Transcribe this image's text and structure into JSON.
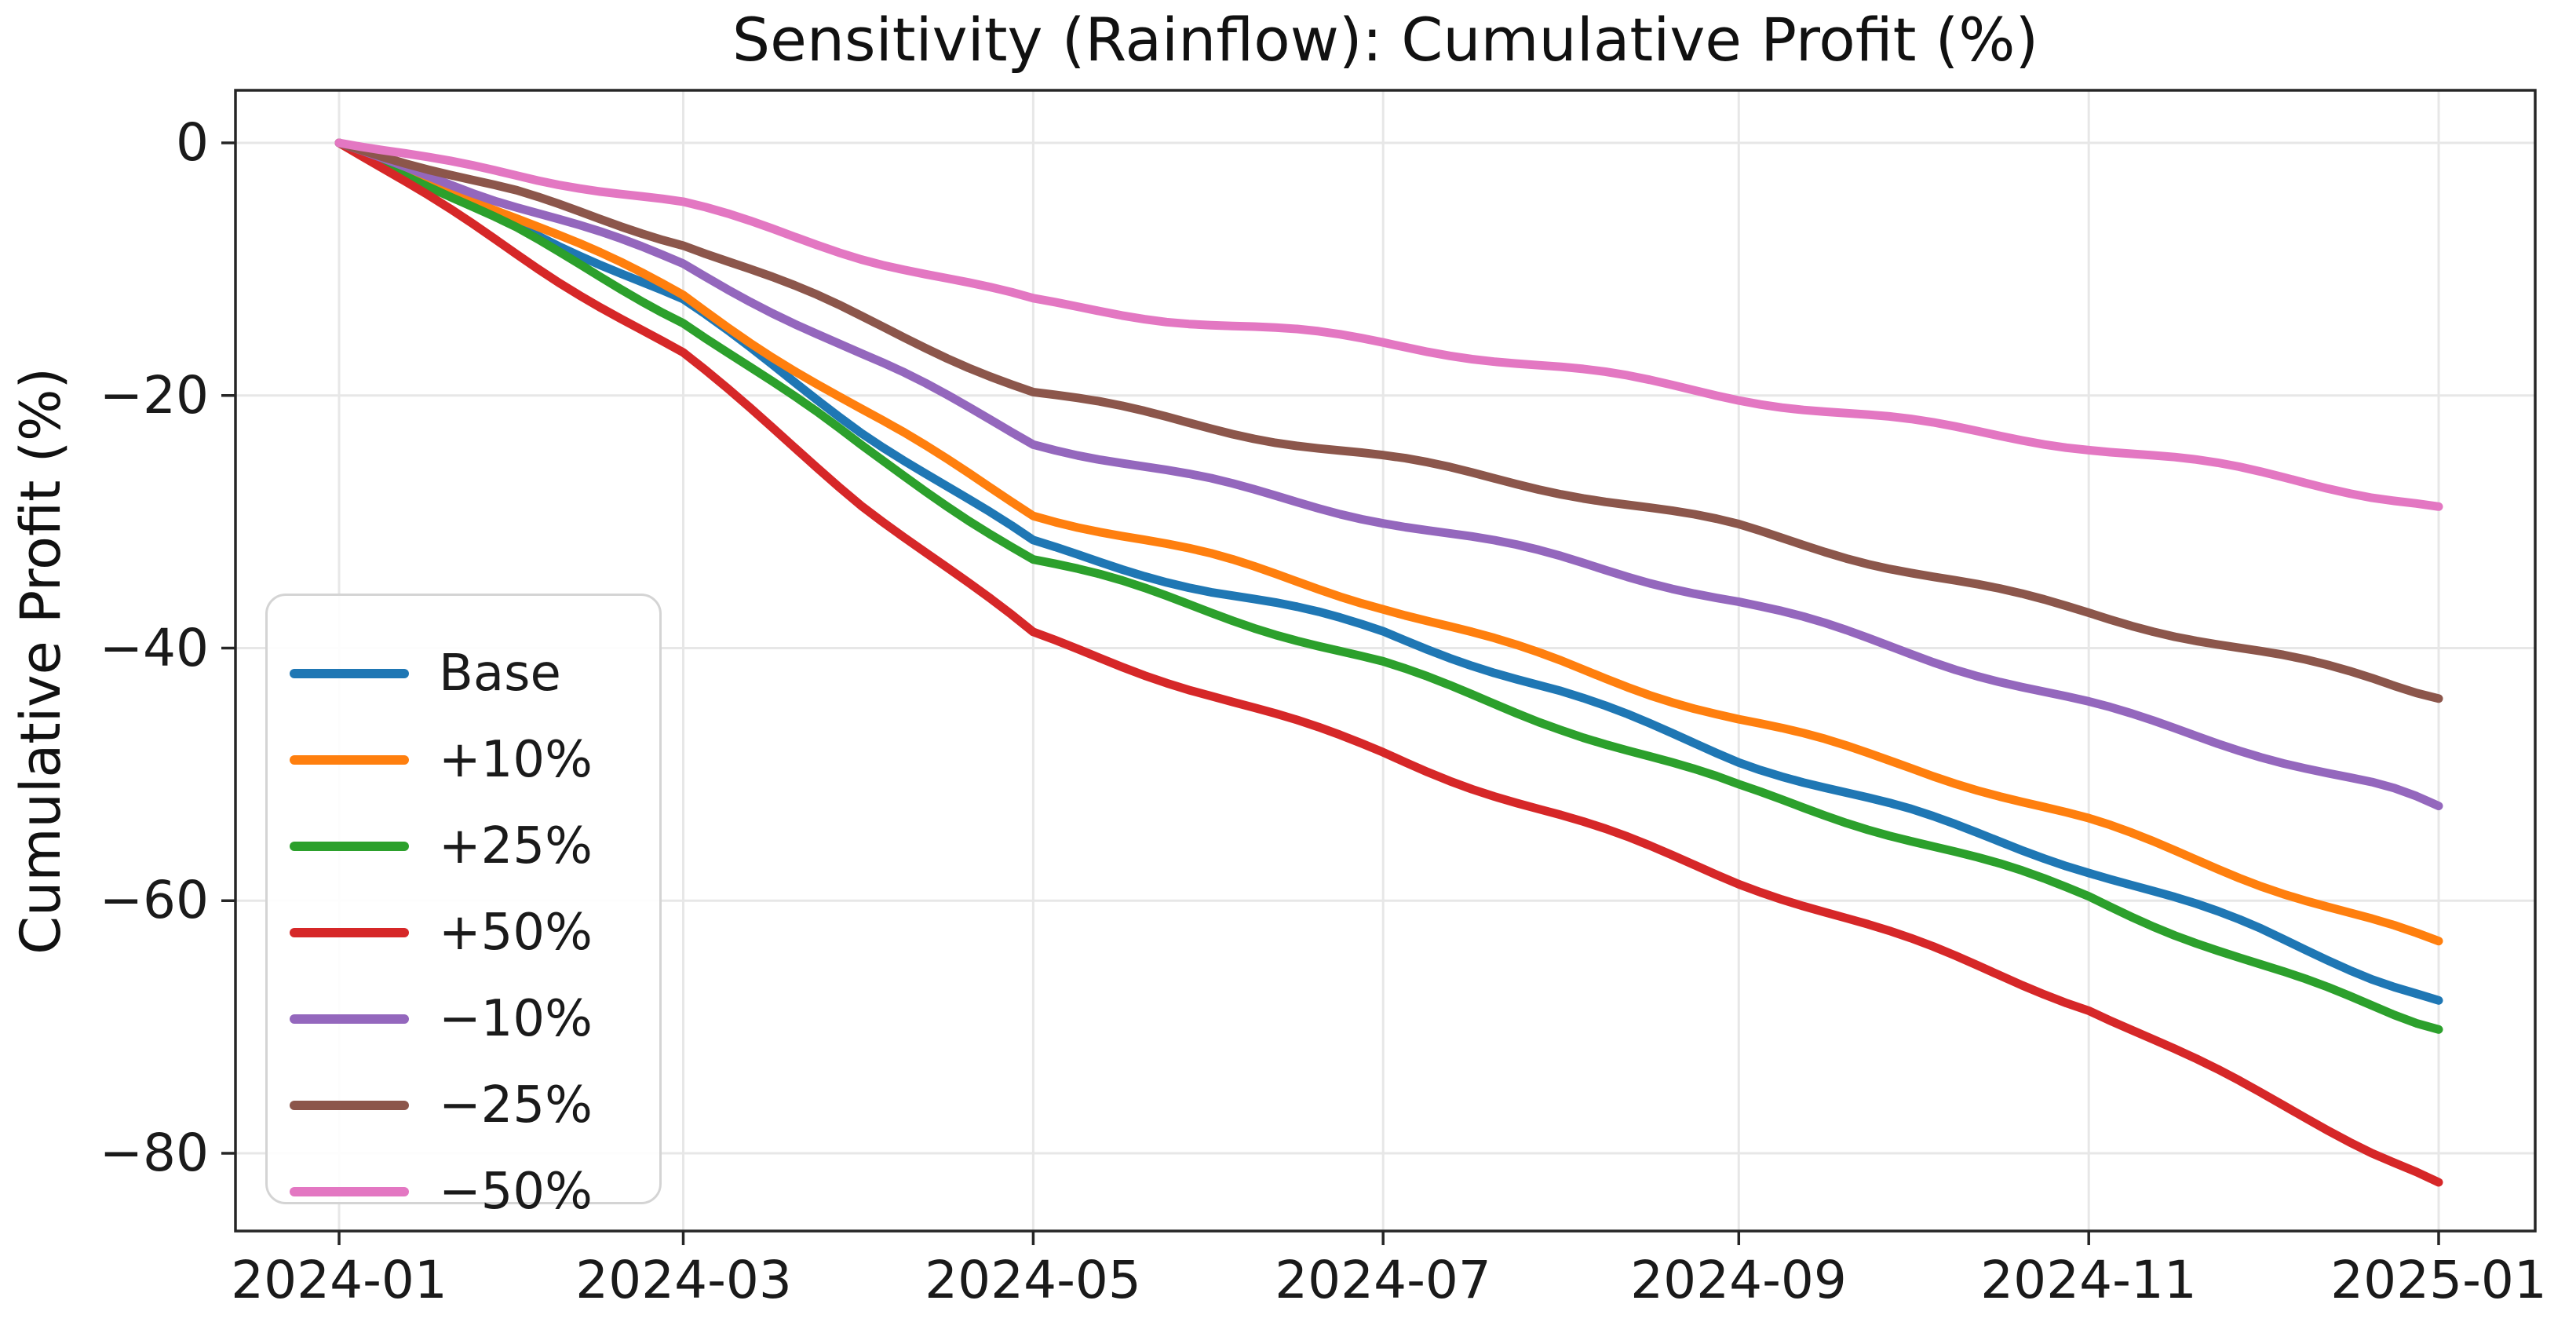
{
  "chart_data": {
    "type": "line",
    "title": "Sensitivity (Rainflow): Cumulative Profit (%)",
    "xlabel": "",
    "ylabel": "Cumulative Profit (%)",
    "grid": true,
    "legend_position": "center left",
    "background_color": "#ffffff",
    "axis_color": "#262626",
    "grid_color": "#e7e7e7",
    "tick_label_color": "#1a1a1a",
    "ylim": [
      -86.2,
      4.2
    ],
    "xlim": [
      "2023-12-14",
      "2025-01-17"
    ],
    "ytick_values": [
      0,
      -20,
      -40,
      -60,
      -80
    ],
    "ytick_labels": [
      "0",
      "−20",
      "−40",
      "−60",
      "−80"
    ],
    "xtick_dates": [
      "2024-01-01",
      "2024-03-01",
      "2024-05-01",
      "2024-07-01",
      "2024-09-01",
      "2024-11-01",
      "2025-01-01"
    ],
    "xtick_labels": [
      "2024-01",
      "2024-03",
      "2024-05",
      "2024-07",
      "2024-09",
      "2024-11",
      "2025-01"
    ],
    "x": [
      "2024-01-01",
      "2024-02-01",
      "2024-03-01",
      "2024-04-01",
      "2024-05-01",
      "2024-06-01",
      "2024-07-01",
      "2024-08-01",
      "2024-09-01",
      "2024-10-01",
      "2024-11-01",
      "2024-12-01",
      "2025-01-01"
    ],
    "series": [
      {
        "name": "Base",
        "color": "#1f77b4",
        "values": [
          0,
          -6.5,
          -12.7,
          -22.5,
          -31.6,
          -35.5,
          -38.9,
          -43.5,
          -48.6,
          -53.0,
          -57.7,
          -62.5,
          -67.9
        ]
      },
      {
        "name": "+10%",
        "color": "#ff7f0e",
        "values": [
          0,
          -6.0,
          -12.0,
          -21.0,
          -29.3,
          -33.0,
          -36.7,
          -41.0,
          -45.5,
          -49.5,
          -53.9,
          -58.5,
          -63.2
        ]
      },
      {
        "name": "+25%",
        "color": "#2ca02c",
        "values": [
          0,
          -7.0,
          -13.8,
          -24.0,
          -33.1,
          -37.2,
          -41.2,
          -46.0,
          -51.1,
          -55.3,
          -59.7,
          -65.0,
          -70.2
        ]
      },
      {
        "name": "+50%",
        "color": "#d62728",
        "values": [
          0,
          -8.5,
          -16.7,
          -28.5,
          -39.2,
          -43.6,
          -48.1,
          -53.3,
          -58.6,
          -63.4,
          -68.3,
          -75.2,
          -82.3
        ]
      },
      {
        "name": "−10%",
        "color": "#9467bd",
        "values": [
          0,
          -4.8,
          -9.6,
          -17.0,
          -23.7,
          -26.7,
          -29.7,
          -33.0,
          -36.5,
          -40.3,
          -44.3,
          -48.3,
          -52.5
        ]
      },
      {
        "name": "−25%",
        "color": "#8c564b",
        "values": [
          0,
          -4.0,
          -8.0,
          -14.0,
          -19.6,
          -22.3,
          -25.0,
          -27.7,
          -30.5,
          -33.7,
          -37.1,
          -40.5,
          -44.0
        ]
      },
      {
        "name": "−50%",
        "color": "#e377c2",
        "values": [
          0,
          -2.5,
          -5.1,
          -8.9,
          -12.4,
          -14.2,
          -16.0,
          -18.0,
          -20.0,
          -22.0,
          -24.1,
          -26.4,
          -28.8
        ]
      }
    ]
  }
}
